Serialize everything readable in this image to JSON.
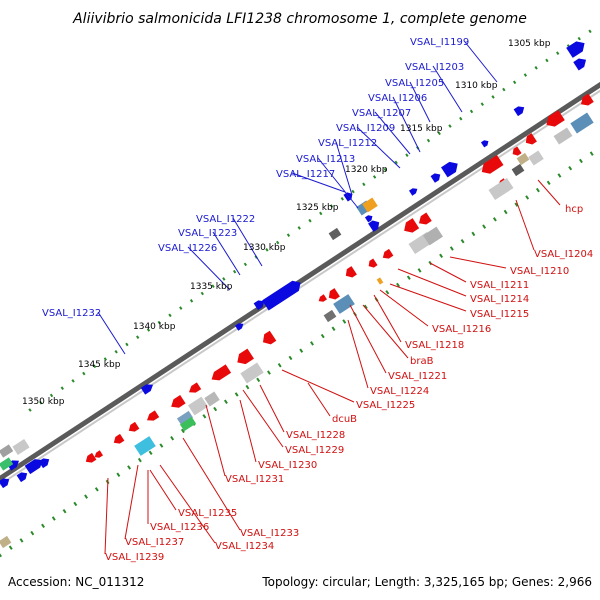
{
  "title": "Aliivibrio salmonicida LFI1238 chromosome 1, complete genome",
  "footer": {
    "accession": "Accession: NC_011312",
    "summary": "Topology: circular; Length: 3,325,165 bp; Genes: 2,966"
  },
  "colors": {
    "forward": "#0a0ae0",
    "reverse": "#e80a0a",
    "axis": "#808080",
    "ticks": "#2a8a2a",
    "label_forward": "#1a1ad0",
    "label_reverse": "#d01010"
  },
  "scale_labels": [
    "1305 kbp",
    "1310 kbp",
    "1315 kbp",
    "1320 kbp",
    "1325 kbp",
    "1330 kbp",
    "1335 kbp",
    "1340 kbp",
    "1345 kbp",
    "1350 kbp"
  ],
  "forward_labels": [
    "VSAL_I1199",
    "VSAL_I1203",
    "VSAL_I1205",
    "VSAL_I1206",
    "VSAL_I1207",
    "VSAL_I1209",
    "VSAL_I1212",
    "VSAL_I1213",
    "VSAL_I1217",
    "VSAL_I1222",
    "VSAL_I1223",
    "VSAL_I1226",
    "VSAL_I1232"
  ],
  "reverse_labels": [
    "hcp",
    "VSAL_I1204",
    "VSAL_I1210",
    "VSAL_I1211",
    "VSAL_I1214",
    "VSAL_I1215",
    "VSAL_I1216",
    "VSAL_I1218",
    "braB",
    "VSAL_I1221",
    "VSAL_I1224",
    "VSAL_I1225",
    "dcuB",
    "VSAL_I1228",
    "VSAL_I1229",
    "VSAL_I1230",
    "VSAL_I1231",
    "VSAL_I1233",
    "VSAL_I1234",
    "VSAL_I1235",
    "VSAL_I1236",
    "VSAL_I1237",
    "VSAL_I1239"
  ]
}
